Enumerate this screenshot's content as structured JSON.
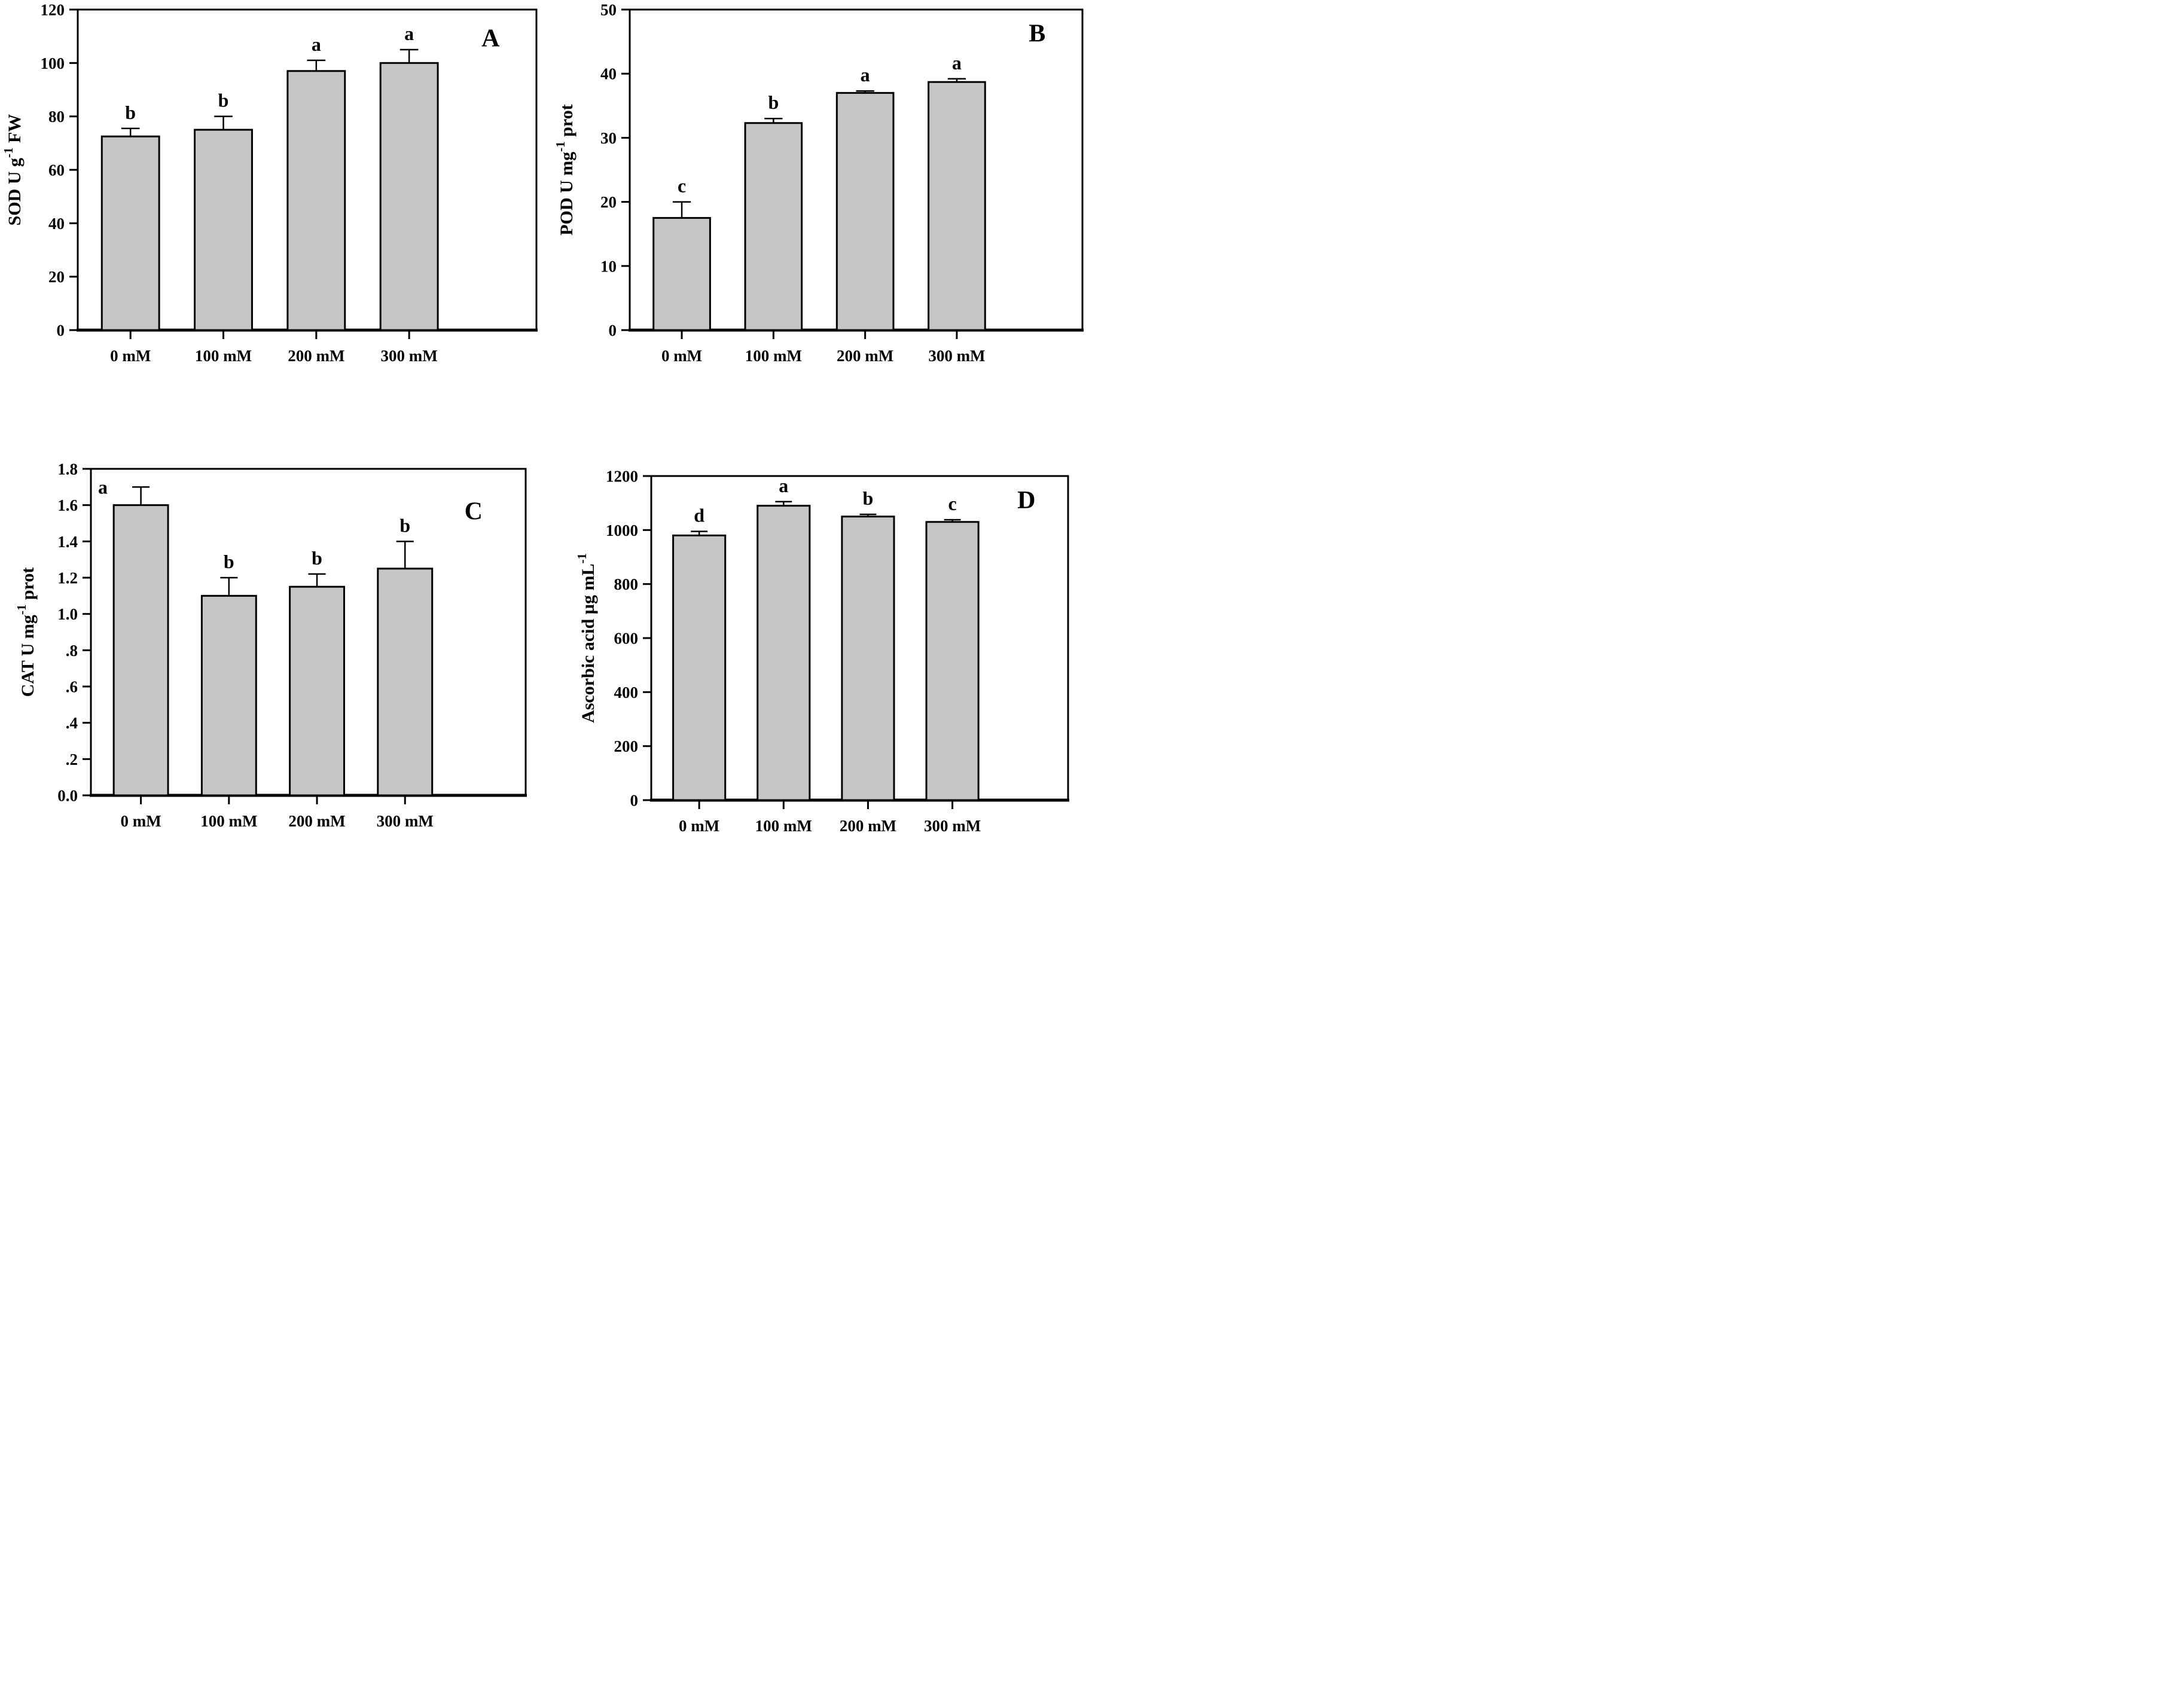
{
  "figure": {
    "background": "#ffffff",
    "bar_fill": "#c6c6c6",
    "axis_color": "#000000",
    "text_color": "#000000"
  },
  "chart_data": [
    {
      "type": "bar",
      "panel_label": "A",
      "measure": "SOD",
      "ylabel_text": "SOD U g-1 FW",
      "ylabel_parts": [
        {
          "t": "SOD U g"
        },
        {
          "t": "-1",
          "sup": true
        },
        {
          "t": " FW"
        }
      ],
      "categories": [
        "0 mM",
        "100 mM",
        "200 mM",
        "300 mM"
      ],
      "values": [
        72.5,
        75,
        97,
        100
      ],
      "errors_up": [
        3,
        5,
        4,
        5
      ],
      "sig_letters": [
        "b",
        "b",
        "a",
        "a"
      ],
      "sig_letter_pos": [
        "above",
        "above",
        "above",
        "above"
      ],
      "ylim": [
        0,
        120
      ],
      "ytick_labels": [
        "0",
        "20",
        "40",
        "60",
        "80",
        "100",
        "120"
      ],
      "grid": false,
      "legend": "none"
    },
    {
      "type": "bar",
      "panel_label": "B",
      "measure": "POD",
      "ylabel_text": "POD U mg-1 prot",
      "ylabel_parts": [
        {
          "t": "POD U mg"
        },
        {
          "t": "-1",
          "sup": true
        },
        {
          "t": " prot"
        }
      ],
      "categories": [
        "0 mM",
        "100 mM",
        "200 mM",
        "300 mM"
      ],
      "values": [
        17.5,
        32.3,
        37,
        38.7
      ],
      "errors_up": [
        2.5,
        0.7,
        0.3,
        0.5
      ],
      "sig_letters": [
        "c",
        "b",
        "a",
        "a"
      ],
      "sig_letter_pos": [
        "above",
        "above",
        "above",
        "above"
      ],
      "ylim": [
        0,
        50
      ],
      "ytick_labels": [
        "0",
        "10",
        "20",
        "30",
        "40",
        "50"
      ],
      "grid": false,
      "legend": "none"
    },
    {
      "type": "bar",
      "panel_label": "C",
      "measure": "CAT",
      "ylabel_text": "CAT U mg-1 prot",
      "ylabel_parts": [
        {
          "t": "CAT U mg"
        },
        {
          "t": "-1",
          "sup": true
        },
        {
          "t": " prot"
        }
      ],
      "categories": [
        "0 mM",
        "100 mM",
        "200 mM",
        "300 mM"
      ],
      "values": [
        1.6,
        1.1,
        1.15,
        1.25
      ],
      "errors_up": [
        0.1,
        0.1,
        0.07,
        0.15
      ],
      "sig_letters": [
        "a",
        "b",
        "b",
        "b"
      ],
      "sig_letter_pos": [
        "left",
        "above",
        "above",
        "above"
      ],
      "ylim": [
        0,
        1.8
      ],
      "ytick_labels": [
        "0.0",
        ".2",
        ".4",
        ".6",
        ".8",
        "1.0",
        "1.2",
        "1.4",
        "1.6",
        "1.8"
      ],
      "grid": false,
      "legend": "none"
    },
    {
      "type": "bar",
      "panel_label": "D",
      "measure": "Ascorbic acid",
      "ylabel_text": "Ascorbic acid ug mL-1",
      "ylabel_parts": [
        {
          "t": "Ascorbic acid µg mL"
        },
        {
          "t": "-1",
          "sup": true
        }
      ],
      "categories": [
        "0 mM",
        "100 mM",
        "200 mM",
        "300 mM"
      ],
      "values": [
        980,
        1090,
        1050,
        1030
      ],
      "errors_up": [
        15,
        15,
        8,
        8
      ],
      "sig_letters": [
        "d",
        "a",
        "b",
        "c"
      ],
      "sig_letter_pos": [
        "above",
        "above",
        "above",
        "above"
      ],
      "ylim": [
        0,
        1200
      ],
      "ytick_labels": [
        "0",
        "200",
        "400",
        "600",
        "800",
        "1000",
        "1200"
      ],
      "grid": false,
      "legend": "none"
    }
  ]
}
